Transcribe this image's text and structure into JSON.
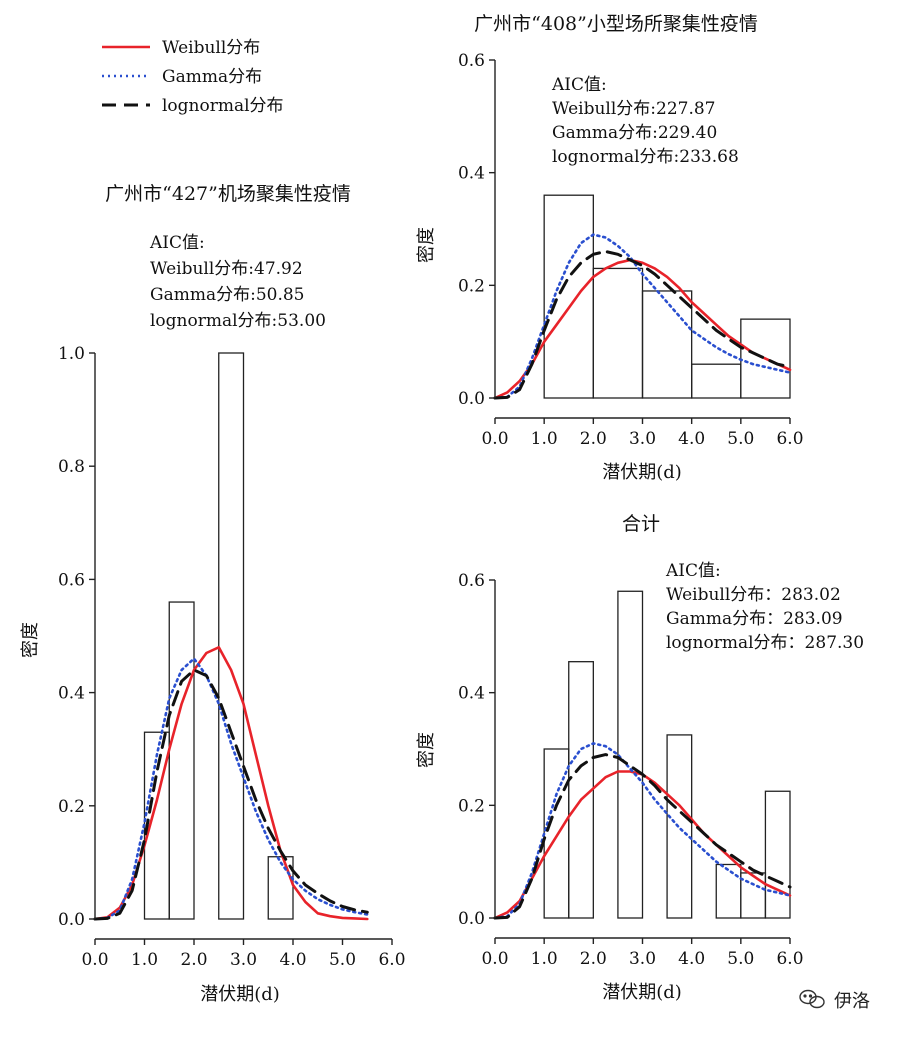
{
  "legend": [
    {
      "name": "Weibull分布",
      "color": "#e8232a",
      "dash": "solid"
    },
    {
      "name": "Gamma分布",
      "color": "#2a4fcf",
      "dash": "dotted"
    },
    {
      "name": "lognormal分布",
      "color": "#111111",
      "dash": "dashed"
    }
  ],
  "watermark": "伊洛",
  "watermark_icon": "wechat-icon",
  "chart_data": [
    {
      "type": "bar",
      "title": "广州市“427”机场聚集性疫情",
      "xlabel": "潜伏期(d)",
      "ylabel": "密度",
      "xlim": [
        0,
        6
      ],
      "ylim": [
        0,
        1.0
      ],
      "xticks": [
        "0.0",
        "1.0",
        "2.0",
        "3.0",
        "4.0",
        "5.0",
        "6.0"
      ],
      "yticks": [
        "0.0",
        "0.2",
        "0.4",
        "0.6",
        "0.8",
        "1.0"
      ],
      "aic": {
        "header": "AIC值:",
        "lines": [
          "Weibull分布:47.92",
          "Gamma分布:50.85",
          "lognormal分布:53.00"
        ]
      },
      "histogram": [
        {
          "x0": 1.0,
          "x1": 1.5,
          "value": 0.33
        },
        {
          "x0": 1.5,
          "x1": 2.0,
          "value": 0.56
        },
        {
          "x0": 2.0,
          "x1": 2.5,
          "value": 0.0
        },
        {
          "x0": 2.5,
          "x1": 3.0,
          "value": 1.0
        },
        {
          "x0": 3.0,
          "x1": 3.5,
          "value": 0.0
        },
        {
          "x0": 3.5,
          "x1": 4.0,
          "value": 0.11
        }
      ],
      "series": [
        {
          "name": "Weibull分布",
          "x": [
            0,
            0.25,
            0.5,
            0.75,
            1.0,
            1.25,
            1.5,
            1.75,
            2.0,
            2.25,
            2.5,
            2.75,
            3.0,
            3.25,
            3.5,
            3.75,
            4.0,
            4.25,
            4.5,
            4.75,
            5.0,
            5.25,
            5.5
          ],
          "values": [
            0,
            0.003,
            0.02,
            0.06,
            0.13,
            0.21,
            0.3,
            0.38,
            0.44,
            0.47,
            0.48,
            0.44,
            0.38,
            0.29,
            0.2,
            0.12,
            0.06,
            0.03,
            0.01,
            0.005,
            0.002,
            0.001,
            0
          ]
        },
        {
          "name": "Gamma分布",
          "x": [
            0,
            0.25,
            0.5,
            0.75,
            1.0,
            1.25,
            1.5,
            1.75,
            2.0,
            2.25,
            2.5,
            2.75,
            3.0,
            3.25,
            3.5,
            3.75,
            4.0,
            4.25,
            4.5,
            4.75,
            5.0,
            5.25,
            5.5
          ],
          "values": [
            0,
            0.002,
            0.015,
            0.07,
            0.17,
            0.29,
            0.39,
            0.44,
            0.46,
            0.43,
            0.38,
            0.31,
            0.25,
            0.19,
            0.14,
            0.1,
            0.07,
            0.05,
            0.035,
            0.025,
            0.017,
            0.012,
            0.008
          ]
        },
        {
          "name": "lognormal分布",
          "x": [
            0,
            0.25,
            0.5,
            0.75,
            1.0,
            1.25,
            1.5,
            1.75,
            2.0,
            2.25,
            2.5,
            2.75,
            3.0,
            3.25,
            3.5,
            3.75,
            4.0,
            4.25,
            4.5,
            4.75,
            5.0,
            5.25,
            5.5
          ],
          "values": [
            0,
            0.001,
            0.01,
            0.05,
            0.14,
            0.26,
            0.36,
            0.42,
            0.44,
            0.43,
            0.39,
            0.33,
            0.27,
            0.21,
            0.16,
            0.12,
            0.085,
            0.06,
            0.045,
            0.032,
            0.022,
            0.016,
            0.012
          ]
        }
      ]
    },
    {
      "type": "bar",
      "title": "广州市“408”小型场所聚集性疫情",
      "xlabel": "潜伏期(d)",
      "ylabel": "密度",
      "xlim": [
        0,
        6
      ],
      "ylim": [
        0,
        0.6
      ],
      "xticks": [
        "0.0",
        "1.0",
        "2.0",
        "3.0",
        "4.0",
        "5.0",
        "6.0"
      ],
      "yticks": [
        "0.0",
        "0.2",
        "0.4",
        "0.6"
      ],
      "aic": {
        "header": "AIC值:",
        "lines": [
          "Weibull分布:227.87",
          "Gamma分布:229.40",
          "lognormal分布:233.68"
        ]
      },
      "histogram": [
        {
          "x0": 1.0,
          "x1": 2.0,
          "value": 0.36
        },
        {
          "x0": 2.0,
          "x1": 3.0,
          "value": 0.23
        },
        {
          "x0": 3.0,
          "x1": 4.0,
          "value": 0.19
        },
        {
          "x0": 4.0,
          "x1": 5.0,
          "value": 0.06
        },
        {
          "x0": 5.0,
          "x1": 6.0,
          "value": 0.14
        }
      ],
      "series": [
        {
          "name": "Weibull分布",
          "x": [
            0,
            0.25,
            0.5,
            0.75,
            1.0,
            1.25,
            1.5,
            1.75,
            2.0,
            2.25,
            2.5,
            2.75,
            3.0,
            3.25,
            3.5,
            3.75,
            4.0,
            4.25,
            4.5,
            4.75,
            5.0,
            5.25,
            5.5,
            5.75,
            6.0
          ],
          "values": [
            0,
            0.01,
            0.03,
            0.06,
            0.1,
            0.13,
            0.16,
            0.19,
            0.215,
            0.23,
            0.24,
            0.245,
            0.24,
            0.23,
            0.215,
            0.195,
            0.17,
            0.15,
            0.13,
            0.11,
            0.095,
            0.08,
            0.07,
            0.06,
            0.05
          ]
        },
        {
          "name": "Gamma分布",
          "x": [
            0,
            0.25,
            0.5,
            0.75,
            1.0,
            1.25,
            1.5,
            1.75,
            2.0,
            2.25,
            2.5,
            2.75,
            3.0,
            3.25,
            3.5,
            3.75,
            4.0,
            4.25,
            4.5,
            4.75,
            5.0,
            5.25,
            5.5,
            5.75,
            6.0
          ],
          "values": [
            0,
            0.002,
            0.02,
            0.07,
            0.13,
            0.19,
            0.24,
            0.275,
            0.29,
            0.285,
            0.27,
            0.25,
            0.22,
            0.195,
            0.17,
            0.145,
            0.12,
            0.105,
            0.09,
            0.078,
            0.068,
            0.06,
            0.055,
            0.05,
            0.045
          ]
        },
        {
          "name": "lognormal分布",
          "x": [
            0,
            0.25,
            0.5,
            0.75,
            1.0,
            1.25,
            1.5,
            1.75,
            2.0,
            2.25,
            2.5,
            2.75,
            3.0,
            3.25,
            3.5,
            3.75,
            4.0,
            4.25,
            4.5,
            4.75,
            5.0,
            5.25,
            5.5,
            5.75,
            6.0
          ],
          "values": [
            0,
            0.001,
            0.015,
            0.06,
            0.12,
            0.175,
            0.215,
            0.24,
            0.255,
            0.26,
            0.255,
            0.245,
            0.235,
            0.22,
            0.2,
            0.18,
            0.16,
            0.14,
            0.12,
            0.105,
            0.09,
            0.08,
            0.07,
            0.06,
            0.055
          ]
        }
      ]
    },
    {
      "type": "bar",
      "title": "合计",
      "xlabel": "潜伏期(d)",
      "ylabel": "密度",
      "xlim": [
        0,
        6
      ],
      "ylim": [
        0,
        0.6
      ],
      "xticks": [
        "0.0",
        "1.0",
        "2.0",
        "3.0",
        "4.0",
        "5.0",
        "6.0"
      ],
      "yticks": [
        "0.0",
        "0.2",
        "0.4",
        "0.6"
      ],
      "aic": {
        "header": "AIC值:",
        "lines": [
          "Weibull分布：283.02",
          "Gamma分布：283.09",
          "lognormal分布：287.30"
        ]
      },
      "histogram": [
        {
          "x0": 1.0,
          "x1": 1.5,
          "value": 0.3
        },
        {
          "x0": 1.5,
          "x1": 2.0,
          "value": 0.455
        },
        {
          "x0": 2.0,
          "x1": 2.5,
          "value": 0.0
        },
        {
          "x0": 2.5,
          "x1": 3.0,
          "value": 0.58
        },
        {
          "x0": 3.0,
          "x1": 3.5,
          "value": 0.0
        },
        {
          "x0": 3.5,
          "x1": 4.0,
          "value": 0.325
        },
        {
          "x0": 4.0,
          "x1": 4.5,
          "value": 0.0
        },
        {
          "x0": 4.5,
          "x1": 5.0,
          "value": 0.095
        },
        {
          "x0": 5.0,
          "x1": 5.5,
          "value": 0.08
        },
        {
          "x0": 5.5,
          "x1": 6.0,
          "value": 0.225
        }
      ],
      "series": [
        {
          "name": "Weibull分布",
          "x": [
            0,
            0.25,
            0.5,
            0.75,
            1.0,
            1.25,
            1.5,
            1.75,
            2.0,
            2.25,
            2.5,
            2.75,
            3.0,
            3.25,
            3.5,
            3.75,
            4.0,
            4.25,
            4.5,
            4.75,
            5.0,
            5.25,
            5.5,
            5.75,
            6.0
          ],
          "values": [
            0,
            0.01,
            0.03,
            0.07,
            0.11,
            0.145,
            0.18,
            0.21,
            0.23,
            0.25,
            0.26,
            0.26,
            0.255,
            0.24,
            0.22,
            0.2,
            0.175,
            0.15,
            0.13,
            0.11,
            0.09,
            0.075,
            0.06,
            0.05,
            0.04
          ]
        },
        {
          "name": "Gamma分布",
          "x": [
            0,
            0.25,
            0.5,
            0.75,
            1.0,
            1.25,
            1.5,
            1.75,
            2.0,
            2.25,
            2.5,
            2.75,
            3.0,
            3.25,
            3.5,
            3.75,
            4.0,
            4.25,
            4.5,
            4.75,
            5.0,
            5.25,
            5.5,
            5.75,
            6.0
          ],
          "values": [
            0,
            0.003,
            0.025,
            0.08,
            0.15,
            0.22,
            0.27,
            0.3,
            0.31,
            0.305,
            0.29,
            0.265,
            0.24,
            0.21,
            0.185,
            0.16,
            0.14,
            0.12,
            0.1,
            0.085,
            0.07,
            0.06,
            0.05,
            0.045,
            0.04
          ]
        },
        {
          "name": "lognormal分布",
          "x": [
            0,
            0.25,
            0.5,
            0.75,
            1.0,
            1.25,
            1.5,
            1.75,
            2.0,
            2.25,
            2.5,
            2.75,
            3.0,
            3.25,
            3.5,
            3.75,
            4.0,
            4.25,
            4.5,
            4.75,
            5.0,
            5.25,
            5.5,
            5.75,
            6.0
          ],
          "values": [
            0,
            0.001,
            0.02,
            0.07,
            0.14,
            0.2,
            0.245,
            0.27,
            0.285,
            0.29,
            0.285,
            0.27,
            0.255,
            0.235,
            0.21,
            0.19,
            0.17,
            0.15,
            0.13,
            0.115,
            0.1,
            0.085,
            0.075,
            0.065,
            0.055
          ]
        }
      ]
    }
  ]
}
